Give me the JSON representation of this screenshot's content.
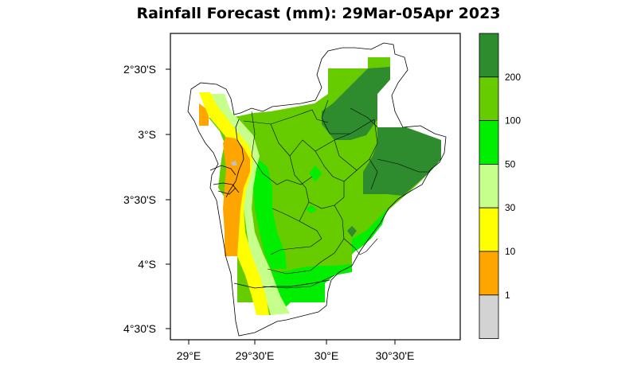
{
  "title": "Rainfall Forecast (mm): 29Mar-05Apr 2023",
  "map": {
    "lat_ticks": [
      "2°30'S",
      "3°S",
      "3°30'S",
      "4°S",
      "4°30'S"
    ],
    "lon_ticks": [
      "29°E",
      "29°30'E",
      "30°E",
      "30°30'E"
    ]
  },
  "legend": {
    "bins": [
      {
        "range": "0-1",
        "color": "#d3d3d3"
      },
      {
        "range": "1-10",
        "color": "#ffa500"
      },
      {
        "range": "10-30",
        "color": "#ffff00"
      },
      {
        "range": "30-50",
        "color": "#c6ff8c"
      },
      {
        "range": "50-100",
        "color": "#00ee00"
      },
      {
        "range": "100-200",
        "color": "#66cc00"
      },
      {
        "range": ">200",
        "color": "#2e8b2e"
      }
    ],
    "labels": [
      "1",
      "10",
      "30",
      "50",
      "100",
      "200"
    ]
  },
  "colors": {
    "gray": "#d3d3d3",
    "orange": "#ffa500",
    "yellow": "#ffff00",
    "light_green": "#c6ff8c",
    "bright_green": "#00ee00",
    "medium_green": "#66cc00",
    "dark_green": "#2e8b2e"
  }
}
